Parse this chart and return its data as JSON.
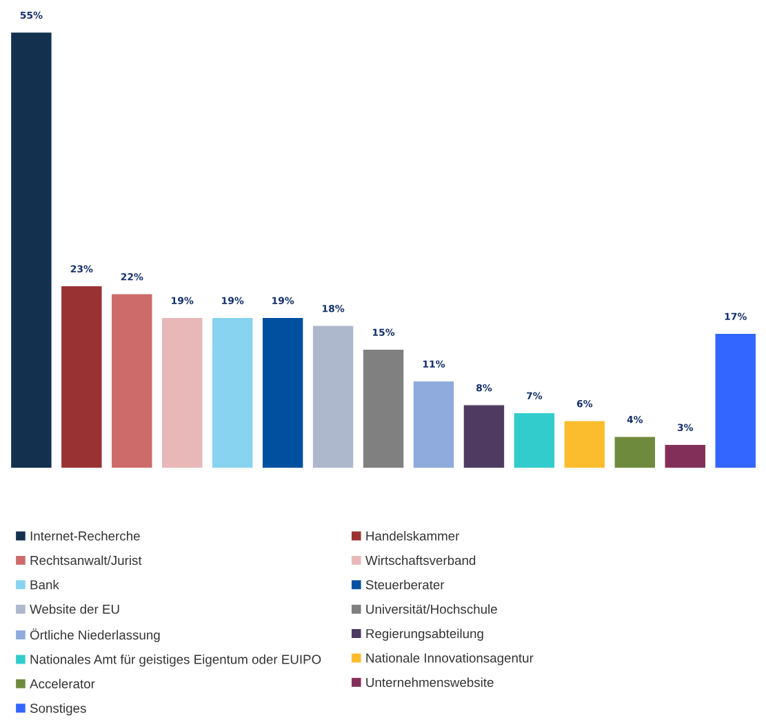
{
  "chart_data": {
    "type": "bar",
    "stacked": true,
    "categories": [
      null,
      null,
      null,
      null,
      null,
      null,
      null,
      null,
      null,
      null,
      null,
      null,
      null,
      null,
      null
    ],
    "series": [
      {
        "name": "Internet-Recherche",
        "color": "#13304f",
        "values": [
          55,
          null,
          null,
          null,
          null,
          null,
          null,
          null,
          null,
          null,
          null,
          null,
          null,
          null,
          null
        ],
        "value_labels": [
          "55%",
          null,
          null,
          null,
          null,
          null,
          null,
          null,
          null,
          null,
          null,
          null,
          null,
          null,
          null
        ]
      },
      {
        "name": "Handelskammer",
        "color": "#993333",
        "values": [
          null,
          23,
          null,
          null,
          null,
          null,
          null,
          null,
          null,
          null,
          null,
          null,
          null,
          null,
          null
        ],
        "value_labels": [
          null,
          "23%",
          null,
          null,
          null,
          null,
          null,
          null,
          null,
          null,
          null,
          null,
          null,
          null,
          null
        ]
      },
      {
        "name": "Rechtsanwalt/Jurist",
        "color": "#cc6b69",
        "values": [
          null,
          null,
          22,
          null,
          null,
          null,
          null,
          null,
          null,
          null,
          null,
          null,
          null,
          null,
          null
        ],
        "value_labels": [
          null,
          null,
          "22%",
          null,
          null,
          null,
          null,
          null,
          null,
          null,
          null,
          null,
          null,
          null,
          null
        ]
      },
      {
        "name": "Wirtschaftsverband",
        "color": "#e8b8b8",
        "values": [
          null,
          null,
          null,
          19,
          null,
          null,
          null,
          null,
          null,
          null,
          null,
          null,
          null,
          null,
          null
        ],
        "value_labels": [
          null,
          null,
          null,
          "19%",
          null,
          null,
          null,
          null,
          null,
          null,
          null,
          null,
          null,
          null,
          null
        ]
      },
      {
        "name": "Bank",
        "color": "#87d3f0",
        "values": [
          null,
          null,
          null,
          null,
          19,
          null,
          null,
          null,
          null,
          null,
          null,
          null,
          null,
          null,
          null
        ],
        "value_labels": [
          null,
          null,
          null,
          null,
          "19%",
          null,
          null,
          null,
          null,
          null,
          null,
          null,
          null,
          null,
          null
        ]
      },
      {
        "name": "Steuerberater",
        "color": "#0050a0",
        "values": [
          null,
          null,
          null,
          null,
          null,
          19,
          null,
          null,
          null,
          null,
          null,
          null,
          null,
          null,
          null
        ],
        "value_labels": [
          null,
          null,
          null,
          null,
          null,
          "19%",
          null,
          null,
          null,
          null,
          null,
          null,
          null,
          null,
          null
        ]
      },
      {
        "name": "Website der EU",
        "color": "#adb8cc",
        "values": [
          null,
          null,
          null,
          null,
          null,
          null,
          18,
          null,
          null,
          null,
          null,
          null,
          null,
          null,
          null
        ],
        "value_labels": [
          null,
          null,
          null,
          null,
          null,
          null,
          "18%",
          null,
          null,
          null,
          null,
          null,
          null,
          null,
          null
        ]
      },
      {
        "name": "Universität/Hochschule",
        "color": "#808080",
        "values": [
          null,
          null,
          null,
          null,
          null,
          null,
          null,
          15,
          null,
          null,
          null,
          null,
          null,
          null,
          null
        ],
        "value_labels": [
          null,
          null,
          null,
          null,
          null,
          null,
          null,
          "15%",
          null,
          null,
          null,
          null,
          null,
          null,
          null
        ]
      },
      {
        "name": "Örtliche Niederlassung",
        "color": "#8faadc",
        "values": [
          null,
          null,
          null,
          null,
          null,
          null,
          null,
          null,
          11,
          null,
          null,
          null,
          null,
          null,
          null
        ],
        "value_labels": [
          null,
          null,
          null,
          null,
          null,
          null,
          null,
          null,
          "11%",
          null,
          null,
          null,
          null,
          null,
          null
        ]
      },
      {
        "name": "Regierungsabteilung",
        "color": "#4f3b62",
        "values": [
          null,
          null,
          null,
          null,
          null,
          null,
          null,
          null,
          null,
          8,
          null,
          null,
          null,
          null,
          null
        ],
        "value_labels": [
          null,
          null,
          null,
          null,
          null,
          null,
          null,
          null,
          null,
          "8%",
          null,
          null,
          null,
          null,
          null
        ]
      },
      {
        "name": "Nationales Amt für geistiges Eigentum oder EUIPO",
        "color": "#33cccc",
        "values": [
          null,
          null,
          null,
          null,
          null,
          null,
          null,
          null,
          null,
          null,
          7,
          null,
          null,
          null,
          null
        ],
        "value_labels": [
          null,
          null,
          null,
          null,
          null,
          null,
          null,
          null,
          null,
          null,
          "7%",
          null,
          null,
          null,
          null
        ]
      },
      {
        "name": "Nationale Innovationsagentur",
        "color": "#fbbc2d",
        "values": [
          null,
          null,
          null,
          null,
          null,
          null,
          null,
          null,
          null,
          null,
          null,
          6,
          null,
          null,
          null
        ],
        "value_labels": [
          null,
          null,
          null,
          null,
          null,
          null,
          null,
          null,
          null,
          null,
          null,
          "6%",
          null,
          null,
          null
        ]
      },
      {
        "name": "Accelerator",
        "color": "#6e8b3d",
        "values": [
          null,
          null,
          null,
          null,
          null,
          null,
          null,
          null,
          null,
          null,
          null,
          null,
          4,
          null,
          null
        ],
        "value_labels": [
          null,
          null,
          null,
          null,
          null,
          null,
          null,
          null,
          null,
          null,
          null,
          null,
          "4%",
          null,
          null
        ]
      },
      {
        "name": "Unternehmenswebsite",
        "color": "#82305a",
        "values": [
          null,
          null,
          null,
          null,
          null,
          null,
          null,
          null,
          null,
          null,
          null,
          null,
          null,
          3,
          null
        ],
        "value_labels": [
          null,
          null,
          null,
          null,
          null,
          null,
          null,
          null,
          null,
          null,
          null,
          null,
          null,
          "3%",
          null
        ]
      },
      {
        "name": "Sonstiges",
        "color": "#3366ff",
        "values": [
          null,
          null,
          null,
          null,
          null,
          null,
          null,
          null,
          null,
          null,
          null,
          null,
          null,
          null,
          17
        ],
        "value_labels": [
          null,
          null,
          null,
          null,
          null,
          null,
          null,
          null,
          null,
          null,
          null,
          null,
          null,
          null,
          "17%"
        ]
      }
    ],
    "legend": "bottom"
  }
}
